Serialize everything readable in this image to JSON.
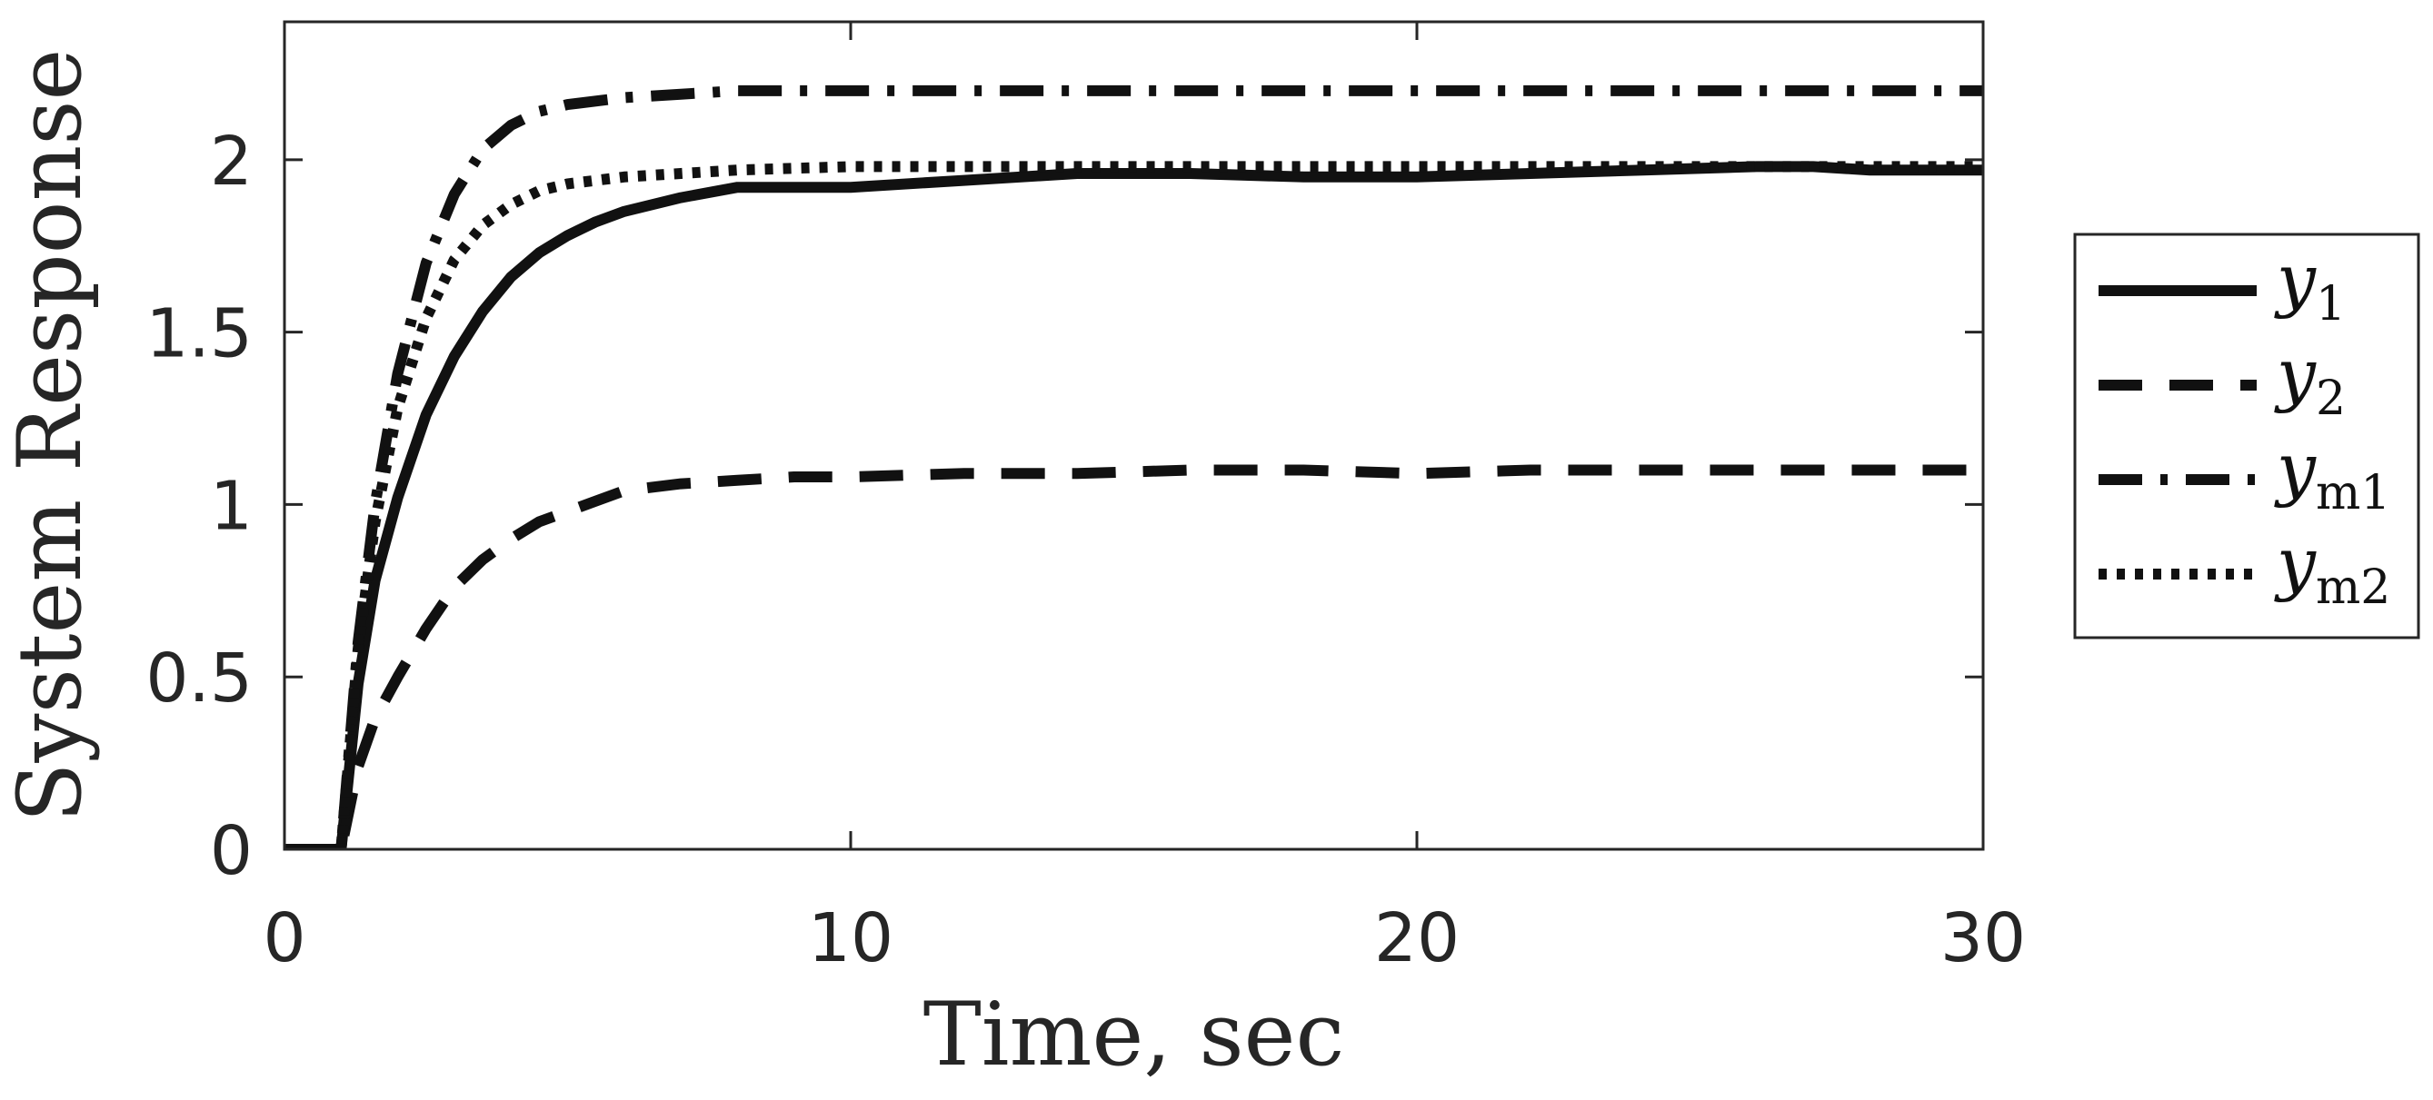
{
  "chart_data": {
    "type": "line",
    "xlabel": "Time, sec",
    "ylabel": "System Response",
    "xlim": [
      0,
      30
    ],
    "ylim": [
      0,
      2.4
    ],
    "x_ticks": [
      0,
      10,
      20,
      30
    ],
    "x_tick_labels": [
      "0",
      "10",
      "20",
      "30"
    ],
    "y_ticks": [
      0,
      0.5,
      1,
      1.5,
      2
    ],
    "y_tick_labels": [
      "0",
      "0.5",
      "1",
      "1.5",
      "2"
    ],
    "grid": false,
    "legend_placement": "outside-right",
    "series": [
      {
        "name": "y1",
        "name_base": "y",
        "name_sub": "1",
        "style": "solid",
        "x": [
          0,
          0.5,
          1.0,
          1.3,
          1.6,
          2,
          2.5,
          3,
          3.5,
          4,
          4.5,
          5,
          5.5,
          6,
          7,
          8,
          9,
          10,
          12,
          14,
          16,
          18,
          20,
          22,
          24,
          26,
          27,
          28,
          29,
          30
        ],
        "y": [
          0,
          0,
          0,
          0.48,
          0.78,
          1.02,
          1.26,
          1.43,
          1.56,
          1.66,
          1.73,
          1.78,
          1.82,
          1.85,
          1.89,
          1.92,
          1.92,
          1.92,
          1.94,
          1.96,
          1.96,
          1.95,
          1.95,
          1.96,
          1.97,
          1.98,
          1.98,
          1.97,
          1.97,
          1.97
        ]
      },
      {
        "name": "y2",
        "name_base": "y",
        "name_sub": "2",
        "style": "dashed",
        "x": [
          0,
          0.5,
          1.0,
          1.3,
          1.6,
          2,
          2.5,
          3,
          3.5,
          4,
          4.5,
          5,
          5.5,
          6,
          7,
          8,
          9,
          10,
          12,
          14,
          16,
          18,
          20,
          22,
          24,
          26,
          28,
          30
        ],
        "y": [
          0,
          0,
          0,
          0.24,
          0.38,
          0.5,
          0.64,
          0.76,
          0.84,
          0.9,
          0.95,
          0.98,
          1.01,
          1.04,
          1.06,
          1.07,
          1.08,
          1.08,
          1.09,
          1.09,
          1.1,
          1.1,
          1.09,
          1.1,
          1.1,
          1.1,
          1.1,
          1.1
        ]
      },
      {
        "name": "ym1",
        "name_base": "y",
        "name_sub": "m1",
        "style": "dashdot",
        "x": [
          0,
          0.5,
          1.0,
          1.3,
          1.6,
          2,
          2.5,
          3,
          3.5,
          4,
          4.5,
          5,
          6,
          7,
          8,
          10,
          15,
          20,
          25,
          30
        ],
        "y": [
          0,
          0,
          0,
          0.6,
          1.0,
          1.38,
          1.7,
          1.9,
          2.03,
          2.1,
          2.14,
          2.16,
          2.18,
          2.19,
          2.2,
          2.2,
          2.2,
          2.2,
          2.2,
          2.2
        ]
      },
      {
        "name": "ym2",
        "name_base": "y",
        "name_sub": "m2",
        "style": "dotted",
        "x": [
          0,
          0.5,
          1.0,
          1.3,
          1.6,
          2,
          2.5,
          3,
          3.5,
          4,
          4.5,
          5,
          6,
          7,
          8,
          10,
          15,
          20,
          25,
          30
        ],
        "y": [
          0,
          0,
          0,
          0.58,
          0.95,
          1.28,
          1.54,
          1.71,
          1.81,
          1.87,
          1.91,
          1.93,
          1.95,
          1.96,
          1.97,
          1.98,
          1.98,
          1.98,
          1.98,
          1.98
        ]
      }
    ]
  }
}
